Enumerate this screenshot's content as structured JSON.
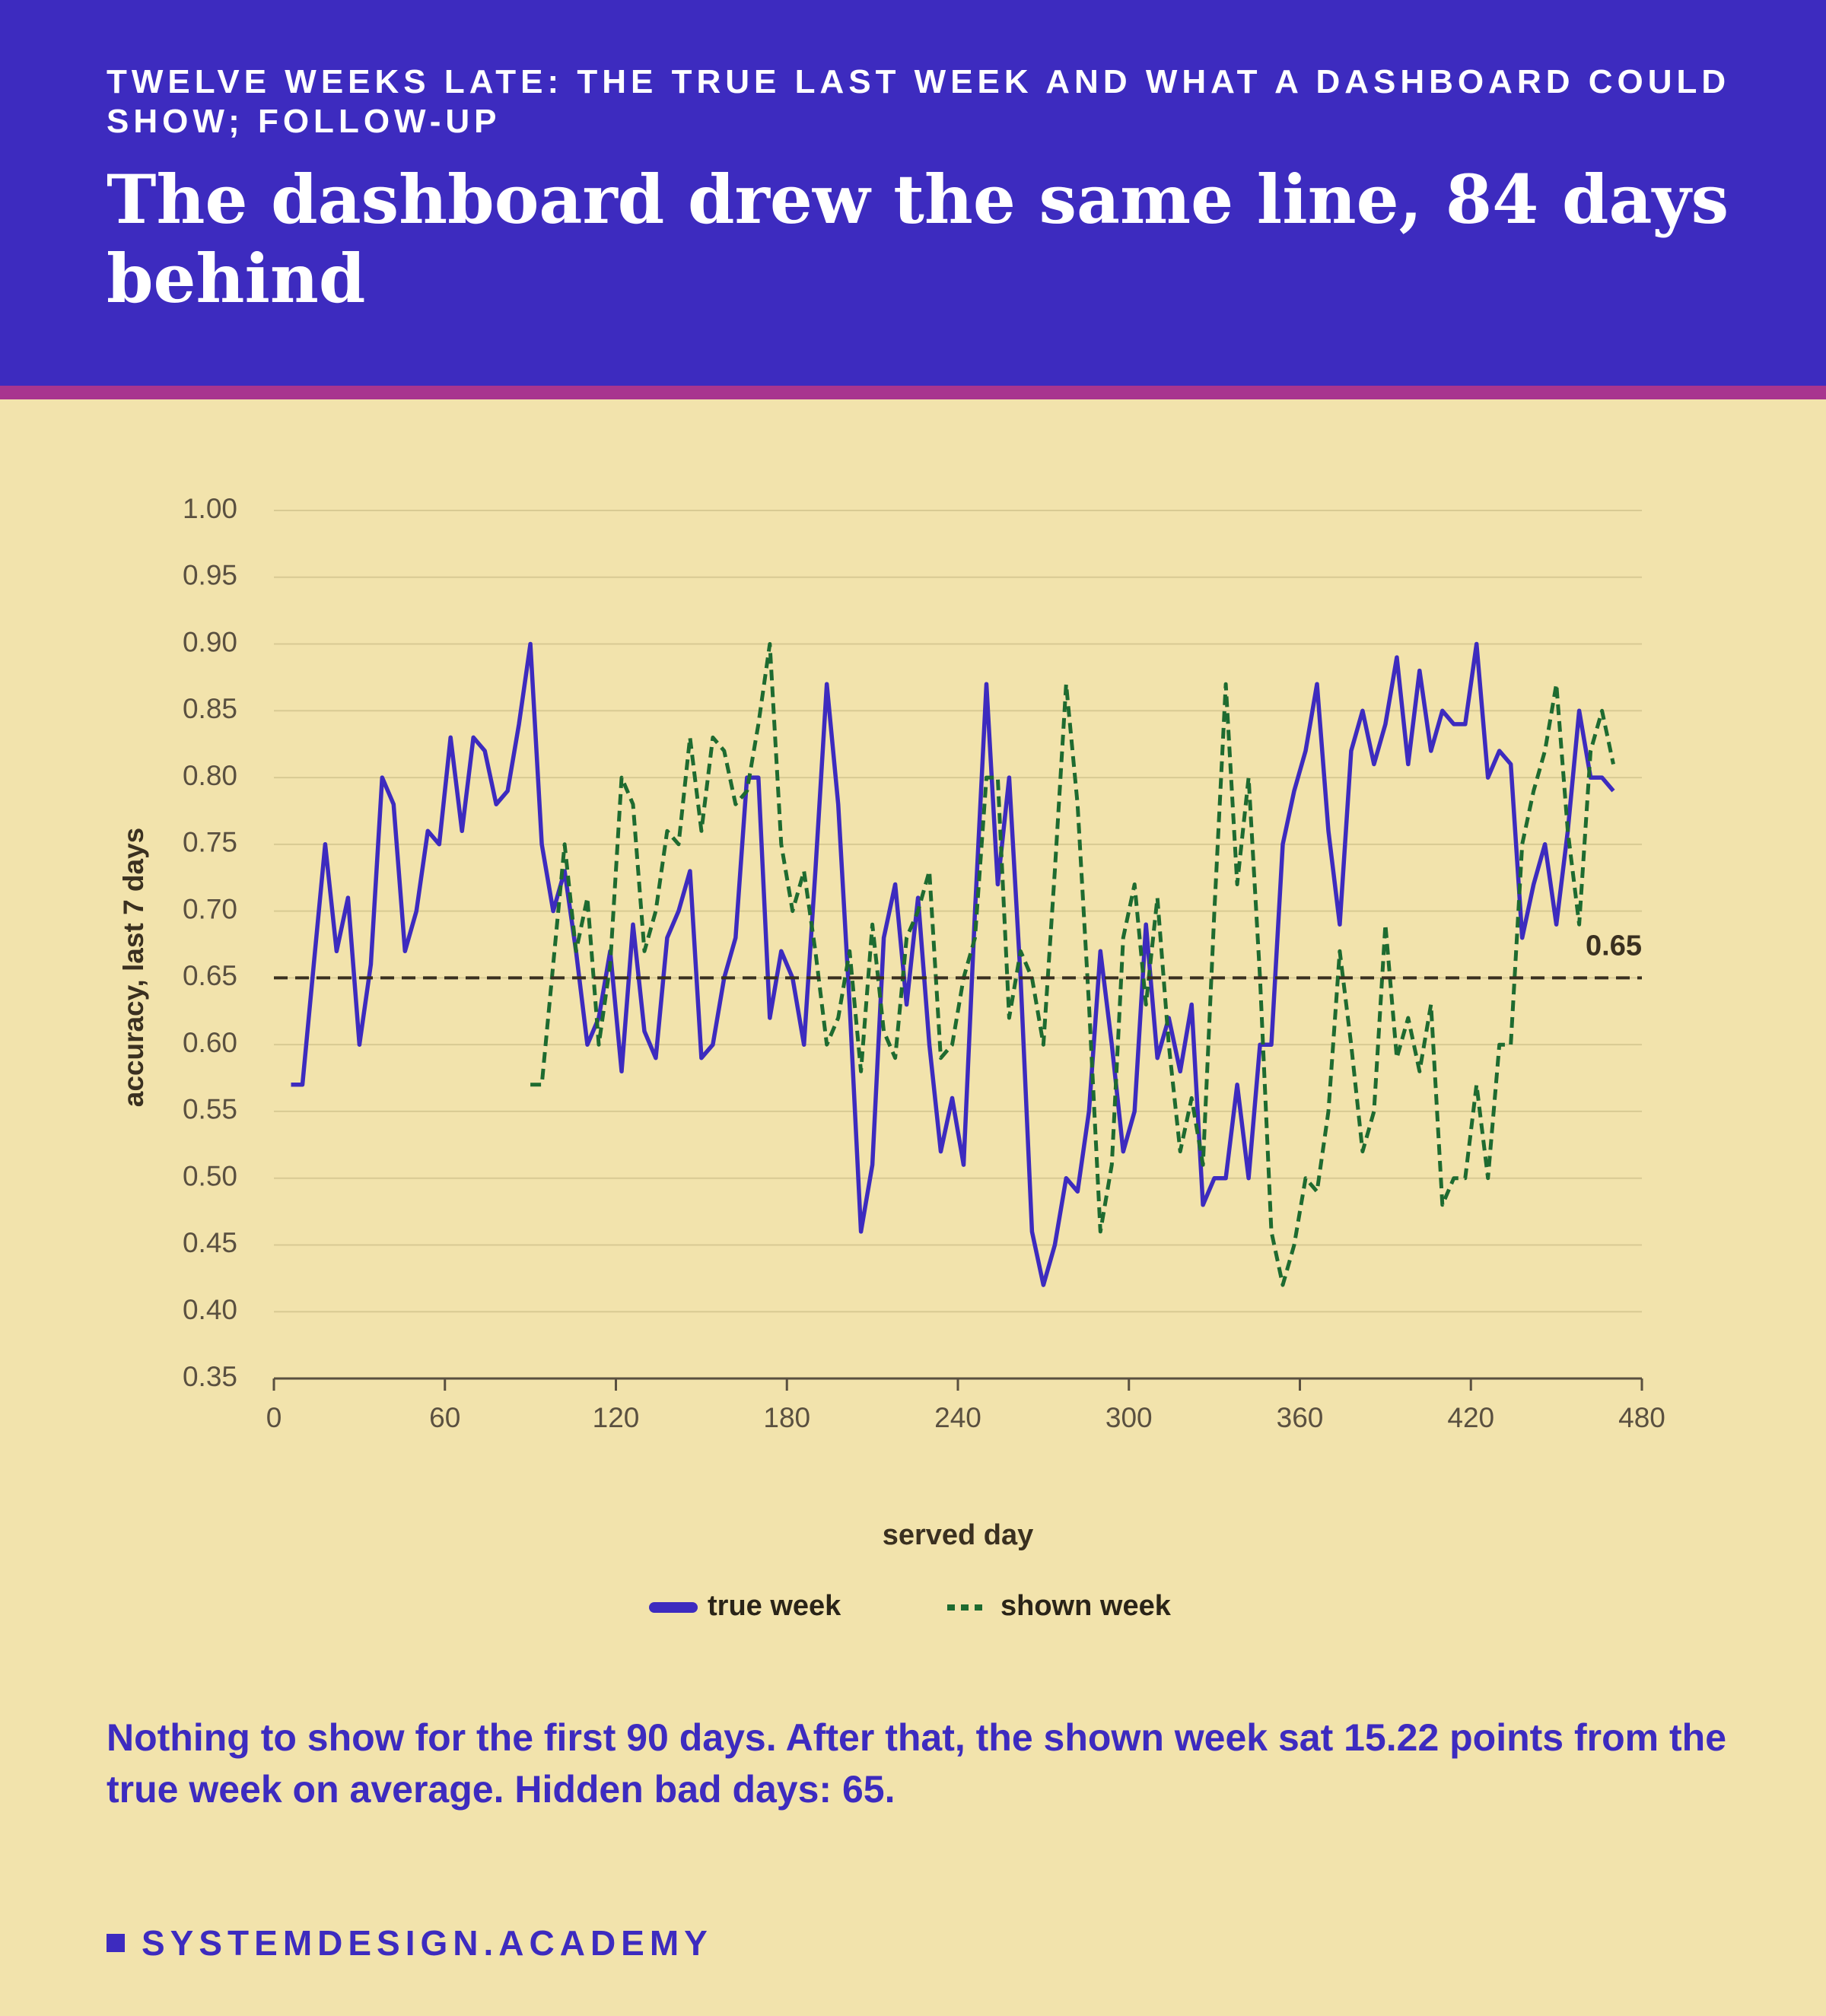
{
  "chart_data": {
    "type": "line",
    "supertitle": "TWELVE WEEKS LATE: THE TRUE LAST WEEK AND WHAT A DASHBOARD COULD SHOW; FOLLOW-UP",
    "title": "The dashboard drew the same line, 84 days behind",
    "xlabel": "served day",
    "ylabel": "accuracy, last 7 days",
    "caption": "Nothing to show for the first 90 days. After that, the shown week sat 15.22 points from the true week on average. Hidden bad days: 65.",
    "footer": "SYSTEMDESIGN.ACADEMY",
    "xlim": [
      0,
      480
    ],
    "xticks": [
      0,
      60,
      120,
      180,
      240,
      300,
      360,
      420,
      480
    ],
    "ylim": [
      0.35,
      1.0
    ],
    "yticks": [
      0.35,
      {
        "value": 0.4,
        "label": "0.40"
      },
      0.45,
      {
        "value": 0.5,
        "label": "0.50"
      },
      0.55,
      {
        "value": 0.6,
        "label": "0.60"
      },
      0.65,
      {
        "value": 0.7,
        "label": "0.70"
      },
      0.75,
      {
        "value": 0.8,
        "label": "0.80"
      },
      0.85,
      {
        "value": 0.9,
        "label": "0.90"
      },
      0.95,
      {
        "value": 1.0,
        "label": "1.00"
      }
    ],
    "grid": true,
    "legend": "bottom",
    "threshold": 0.65,
    "threshold_color": "#3a3020",
    "x": [
      6,
      10,
      14,
      18,
      22,
      26,
      30,
      34,
      38,
      42,
      46,
      50,
      54,
      58,
      62,
      66,
      70,
      74,
      78,
      82,
      86,
      90,
      94,
      98,
      102,
      106,
      110,
      114,
      118,
      122,
      126,
      130,
      134,
      138,
      142,
      146,
      150,
      154,
      158,
      162,
      166,
      170,
      174,
      178,
      182,
      186,
      190,
      194,
      198,
      202,
      206,
      210,
      214,
      218,
      222,
      226,
      230,
      234,
      238,
      242,
      246,
      250,
      254,
      258,
      262,
      266,
      270,
      274,
      278,
      282,
      286,
      290,
      294,
      298,
      302,
      306,
      310,
      314,
      318,
      322,
      326,
      330,
      334,
      338,
      342,
      346,
      350,
      354,
      358,
      362,
      366,
      370,
      374,
      378,
      382,
      386,
      390,
      394,
      398,
      402,
      406,
      410,
      414,
      418,
      422,
      426,
      430,
      434,
      438,
      442,
      446,
      450,
      454,
      458,
      462,
      466,
      470
    ],
    "series": [
      {
        "name": "true week",
        "color": "#3d2bbf",
        "dashed": false,
        "values": [
          0.57,
          0.57,
          0.66,
          0.75,
          0.67,
          0.71,
          0.6,
          0.66,
          0.8,
          0.78,
          0.67,
          0.7,
          0.76,
          0.75,
          0.83,
          0.76,
          0.83,
          0.82,
          0.78,
          0.79,
          0.84,
          0.9,
          0.75,
          0.7,
          0.73,
          0.67,
          0.6,
          0.62,
          0.67,
          0.58,
          0.69,
          0.61,
          0.59,
          0.68,
          0.7,
          0.73,
          0.59,
          0.6,
          0.65,
          0.68,
          0.8,
          0.8,
          0.62,
          0.67,
          0.65,
          0.6,
          0.73,
          0.87,
          0.78,
          0.63,
          0.46,
          0.51,
          0.68,
          0.72,
          0.63,
          0.71,
          0.6,
          0.52,
          0.56,
          0.51,
          0.7,
          0.87,
          0.72,
          0.8,
          0.65,
          0.46,
          0.42,
          0.45,
          0.5,
          0.49,
          0.55,
          0.67,
          0.6,
          0.52,
          0.55,
          0.69,
          0.59,
          0.62,
          0.58,
          0.63,
          0.48,
          0.5,
          0.5,
          0.57,
          0.5,
          0.6,
          0.6,
          0.75,
          0.79,
          0.82,
          0.87,
          0.76,
          0.69,
          0.82,
          0.85,
          0.81,
          0.84,
          0.89,
          0.81,
          0.88,
          0.82,
          0.85,
          0.84,
          0.84,
          0.9,
          0.8,
          0.82,
          0.81,
          0.68,
          0.72,
          0.75,
          0.69,
          0.76,
          0.85,
          0.8,
          0.8,
          0.79
        ]
      },
      {
        "name": "shown week",
        "color": "#1e6b30",
        "dashed": true,
        "values": [
          null,
          null,
          null,
          null,
          null,
          null,
          null,
          null,
          null,
          null,
          null,
          null,
          null,
          null,
          null,
          null,
          null,
          null,
          null,
          null,
          null,
          0.57,
          0.57,
          0.66,
          0.75,
          0.67,
          0.71,
          0.6,
          0.66,
          0.8,
          0.78,
          0.67,
          0.7,
          0.76,
          0.75,
          0.83,
          0.76,
          0.83,
          0.82,
          0.78,
          0.79,
          0.84,
          0.9,
          0.75,
          0.7,
          0.73,
          0.67,
          0.6,
          0.62,
          0.67,
          0.58,
          0.69,
          0.61,
          0.59,
          0.68,
          0.7,
          0.73,
          0.59,
          0.6,
          0.65,
          0.68,
          0.8,
          0.8,
          0.62,
          0.67,
          0.65,
          0.6,
          0.73,
          0.87,
          0.78,
          0.63,
          0.46,
          0.51,
          0.68,
          0.72,
          0.63,
          0.71,
          0.6,
          0.52,
          0.56,
          0.51,
          0.7,
          0.87,
          0.72,
          0.8,
          0.65,
          0.46,
          0.42,
          0.45,
          0.5,
          0.49,
          0.55,
          0.67,
          0.6,
          0.52,
          0.55,
          0.69,
          0.59,
          0.62,
          0.58,
          0.63,
          0.48,
          0.5,
          0.5,
          0.57,
          0.5,
          0.6,
          0.6,
          0.75,
          0.79,
          0.82,
          0.87,
          0.76,
          0.69,
          0.82,
          0.85,
          0.81
        ]
      }
    ]
  }
}
